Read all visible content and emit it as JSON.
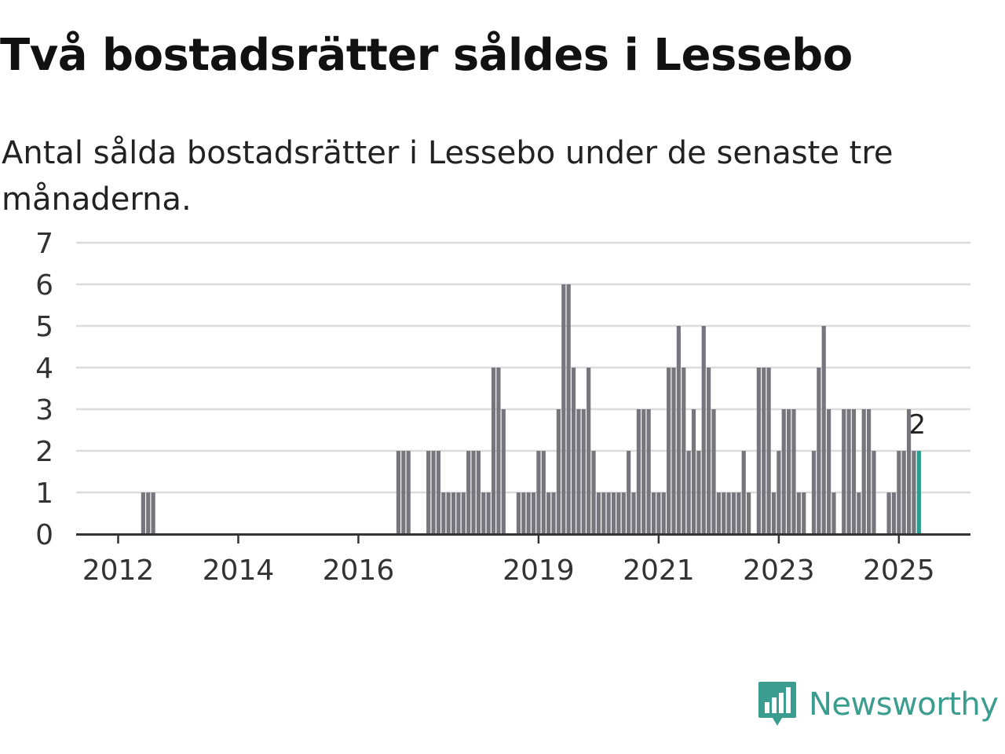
{
  "title": "Två bostadsrätter såldes i Lessebo",
  "subtitle": "Antal sålda bostadsrätter i Lessebo under de senaste tre månaderna.",
  "brand": {
    "name": "Newsworthy",
    "icon": "newsworthy-logo-icon"
  },
  "colors": {
    "bar": "#76767c",
    "highlight": "#2a9d8f",
    "grid": "#dcdcdc",
    "axis": "#333333",
    "text": "#333333",
    "brand": "#3a9d8f"
  },
  "chart_data": {
    "type": "bar",
    "title": "Två bostadsrätter såldes i Lessebo",
    "subtitle": "Antal sålda bostadsrätter i Lessebo under de senaste tre månaderna.",
    "xlabel": "",
    "ylabel": "",
    "ylim": [
      0,
      7
    ],
    "yticks": [
      0,
      1,
      2,
      3,
      4,
      5,
      6,
      7
    ],
    "xticks": [
      "2012",
      "2014",
      "2016",
      "2019",
      "2021",
      "2023",
      "2025"
    ],
    "grid": true,
    "legend": "none",
    "x_start": "2011-09",
    "x_end": "2025-05",
    "series": [
      {
        "points": [
          {
            "month": "2012-06",
            "value": 1
          },
          {
            "month": "2012-07",
            "value": 1
          },
          {
            "month": "2012-08",
            "value": 1
          },
          {
            "month": "2016-09",
            "value": 2
          },
          {
            "month": "2016-10",
            "value": 2
          },
          {
            "month": "2016-11",
            "value": 2
          },
          {
            "month": "2017-03",
            "value": 2
          },
          {
            "month": "2017-04",
            "value": 2
          },
          {
            "month": "2017-05",
            "value": 2
          },
          {
            "month": "2017-06",
            "value": 1
          },
          {
            "month": "2017-07",
            "value": 1
          },
          {
            "month": "2017-08",
            "value": 1
          },
          {
            "month": "2017-09",
            "value": 1
          },
          {
            "month": "2017-10",
            "value": 1
          },
          {
            "month": "2017-11",
            "value": 2
          },
          {
            "month": "2017-12",
            "value": 2
          },
          {
            "month": "2018-01",
            "value": 2
          },
          {
            "month": "2018-02",
            "value": 1
          },
          {
            "month": "2018-03",
            "value": 1
          },
          {
            "month": "2018-04",
            "value": 4
          },
          {
            "month": "2018-05",
            "value": 4
          },
          {
            "month": "2018-06",
            "value": 3
          },
          {
            "month": "2018-09",
            "value": 1
          },
          {
            "month": "2018-10",
            "value": 1
          },
          {
            "month": "2018-11",
            "value": 1
          },
          {
            "month": "2018-12",
            "value": 1
          },
          {
            "month": "2019-01",
            "value": 2
          },
          {
            "month": "2019-02",
            "value": 2
          },
          {
            "month": "2019-03",
            "value": 1
          },
          {
            "month": "2019-04",
            "value": 1
          },
          {
            "month": "2019-05",
            "value": 3
          },
          {
            "month": "2019-06",
            "value": 6
          },
          {
            "month": "2019-07",
            "value": 6
          },
          {
            "month": "2019-08",
            "value": 4
          },
          {
            "month": "2019-09",
            "value": 3
          },
          {
            "month": "2019-10",
            "value": 3
          },
          {
            "month": "2019-11",
            "value": 4
          },
          {
            "month": "2019-12",
            "value": 2
          },
          {
            "month": "2020-01",
            "value": 1
          },
          {
            "month": "2020-02",
            "value": 1
          },
          {
            "month": "2020-03",
            "value": 1
          },
          {
            "month": "2020-04",
            "value": 1
          },
          {
            "month": "2020-05",
            "value": 1
          },
          {
            "month": "2020-06",
            "value": 1
          },
          {
            "month": "2020-07",
            "value": 2
          },
          {
            "month": "2020-08",
            "value": 1
          },
          {
            "month": "2020-09",
            "value": 3
          },
          {
            "month": "2020-10",
            "value": 3
          },
          {
            "month": "2020-11",
            "value": 3
          },
          {
            "month": "2020-12",
            "value": 1
          },
          {
            "month": "2021-01",
            "value": 1
          },
          {
            "month": "2021-02",
            "value": 1
          },
          {
            "month": "2021-03",
            "value": 4
          },
          {
            "month": "2021-04",
            "value": 4
          },
          {
            "month": "2021-05",
            "value": 5
          },
          {
            "month": "2021-06",
            "value": 4
          },
          {
            "month": "2021-07",
            "value": 2
          },
          {
            "month": "2021-08",
            "value": 3
          },
          {
            "month": "2021-09",
            "value": 2
          },
          {
            "month": "2021-10",
            "value": 5
          },
          {
            "month": "2021-11",
            "value": 4
          },
          {
            "month": "2021-12",
            "value": 3
          },
          {
            "month": "2022-01",
            "value": 1
          },
          {
            "month": "2022-02",
            "value": 1
          },
          {
            "month": "2022-03",
            "value": 1
          },
          {
            "month": "2022-04",
            "value": 1
          },
          {
            "month": "2022-05",
            "value": 1
          },
          {
            "month": "2022-06",
            "value": 2
          },
          {
            "month": "2022-07",
            "value": 1
          },
          {
            "month": "2022-09",
            "value": 4
          },
          {
            "month": "2022-10",
            "value": 4
          },
          {
            "month": "2022-11",
            "value": 4
          },
          {
            "month": "2022-12",
            "value": 1
          },
          {
            "month": "2023-01",
            "value": 2
          },
          {
            "month": "2023-02",
            "value": 3
          },
          {
            "month": "2023-03",
            "value": 3
          },
          {
            "month": "2023-04",
            "value": 3
          },
          {
            "month": "2023-05",
            "value": 1
          },
          {
            "month": "2023-06",
            "value": 1
          },
          {
            "month": "2023-08",
            "value": 2
          },
          {
            "month": "2023-09",
            "value": 4
          },
          {
            "month": "2023-10",
            "value": 5
          },
          {
            "month": "2023-11",
            "value": 3
          },
          {
            "month": "2023-12",
            "value": 1
          },
          {
            "month": "2024-02",
            "value": 3
          },
          {
            "month": "2024-03",
            "value": 3
          },
          {
            "month": "2024-04",
            "value": 3
          },
          {
            "month": "2024-05",
            "value": 1
          },
          {
            "month": "2024-06",
            "value": 3
          },
          {
            "month": "2024-07",
            "value": 3
          },
          {
            "month": "2024-08",
            "value": 2
          },
          {
            "month": "2024-11",
            "value": 1
          },
          {
            "month": "2024-12",
            "value": 1
          },
          {
            "month": "2025-01",
            "value": 2
          },
          {
            "month": "2025-02",
            "value": 2
          },
          {
            "month": "2025-03",
            "value": 3
          },
          {
            "month": "2025-04",
            "value": 2
          },
          {
            "month": "2025-05",
            "value": 2
          }
        ]
      }
    ],
    "highlight": {
      "month": "2025-05",
      "value": 2,
      "label": "2"
    }
  }
}
